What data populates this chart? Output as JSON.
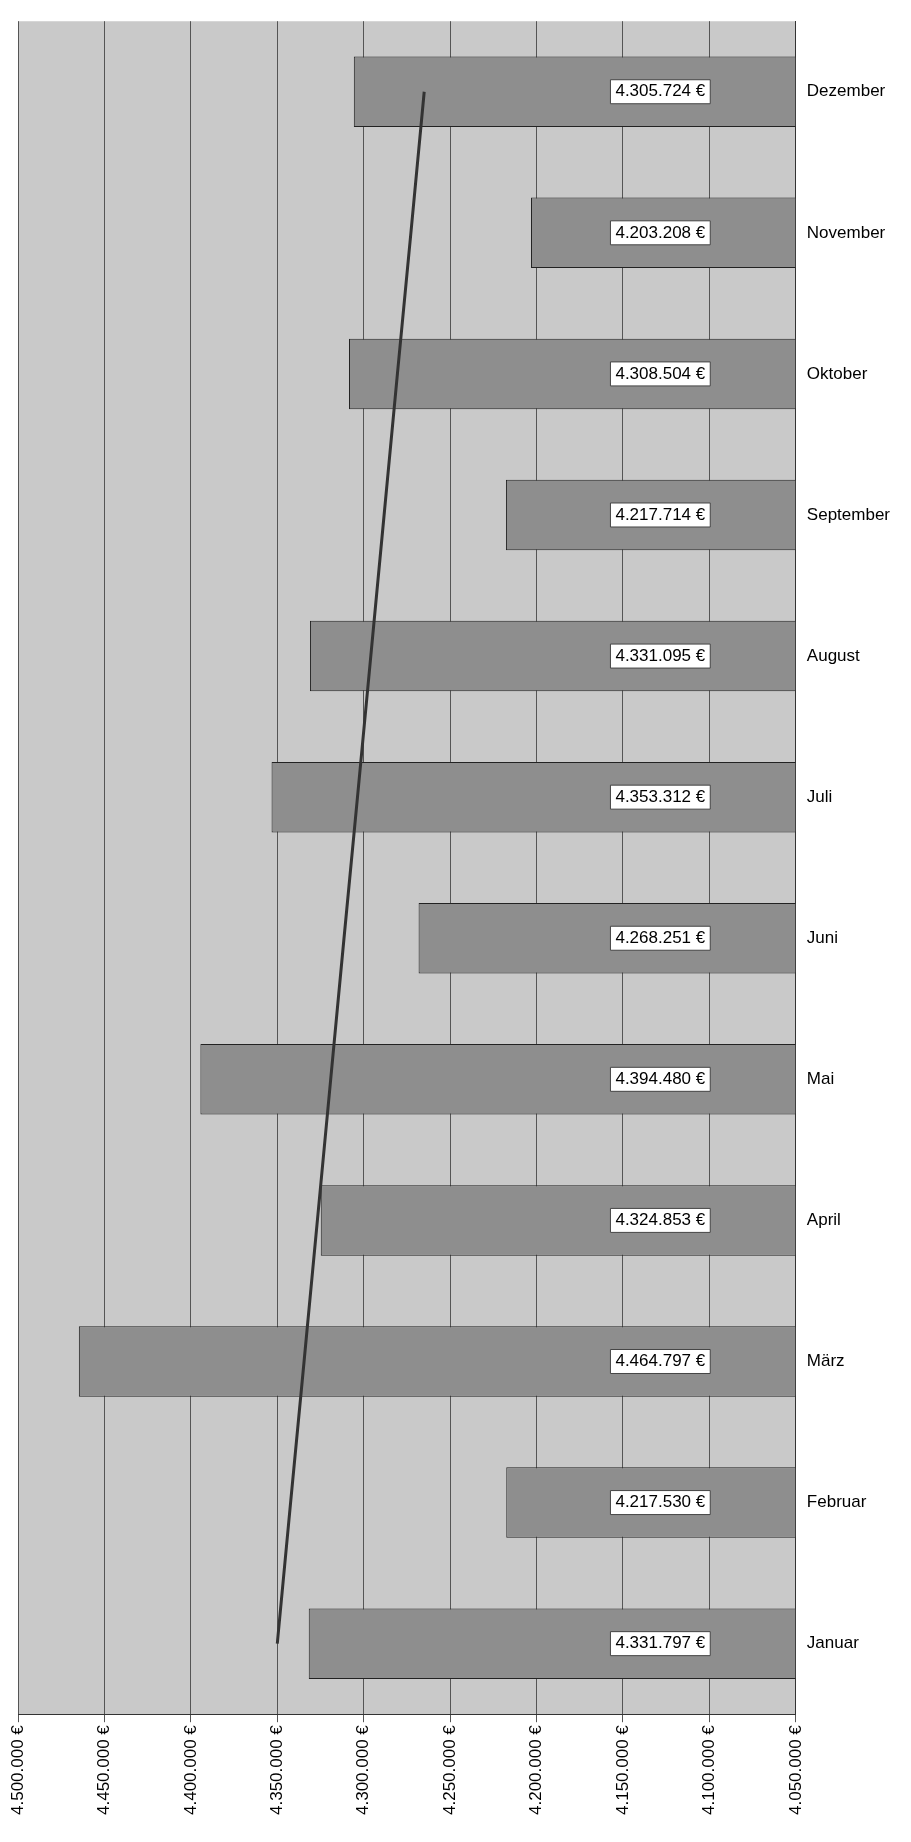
{
  "chart_data": {
    "type": "bar",
    "orientation": "horizontal",
    "categories": [
      "Dezember",
      "November",
      "Oktober",
      "September",
      "August",
      "Juli",
      "Juni",
      "Mai",
      "April",
      "März",
      "Februar",
      "Januar"
    ],
    "series": [
      {
        "color": "#8e8e8e",
        "values": [
          4305724,
          4203208,
          4308504,
          4217714,
          4331095,
          4353312,
          4268251,
          4394480,
          4324853,
          4464797,
          4217530,
          4331797
        ],
        "value_labels": [
          "4.305.724 €",
          "4.203.208 €",
          "4.308.504 €",
          "4.217.714 €",
          "4.331.095 €",
          "4.353.312 €",
          "4.268.251 €",
          "4.394.480 €",
          "4.324.853 €",
          "4.464.797 €",
          "4.217.530 €",
          "4.331.797 €"
        ]
      },
      {
        "type": "line",
        "color": "#333333",
        "values": [
          4265000,
          4272700,
          4280500,
          4288200,
          4295900,
          4303600,
          4311400,
          4319100,
          4326800,
          4334500,
          4342300,
          4350000
        ]
      }
    ],
    "xlim": [
      4500000,
      4050000
    ],
    "xticks": [
      {
        "value": 4500000,
        "label": "4.500.000 €"
      },
      {
        "value": 4450000,
        "label": "4.450.000 €"
      },
      {
        "value": 4400000,
        "label": "4.400.000 €"
      },
      {
        "value": 4350000,
        "label": "4.350.000 €"
      },
      {
        "value": 4300000,
        "label": "4.300.000 €"
      },
      {
        "value": 4250000,
        "label": "4.250.000 €"
      },
      {
        "value": 4200000,
        "label": "4.200.000 €"
      },
      {
        "value": 4150000,
        "label": "4.150.000 €"
      },
      {
        "value": 4100000,
        "label": "4.100.000 €"
      },
      {
        "value": 4050000,
        "label": "4.050.000 €"
      }
    ],
    "grid": "x",
    "legend": false,
    "marker": "none"
  }
}
